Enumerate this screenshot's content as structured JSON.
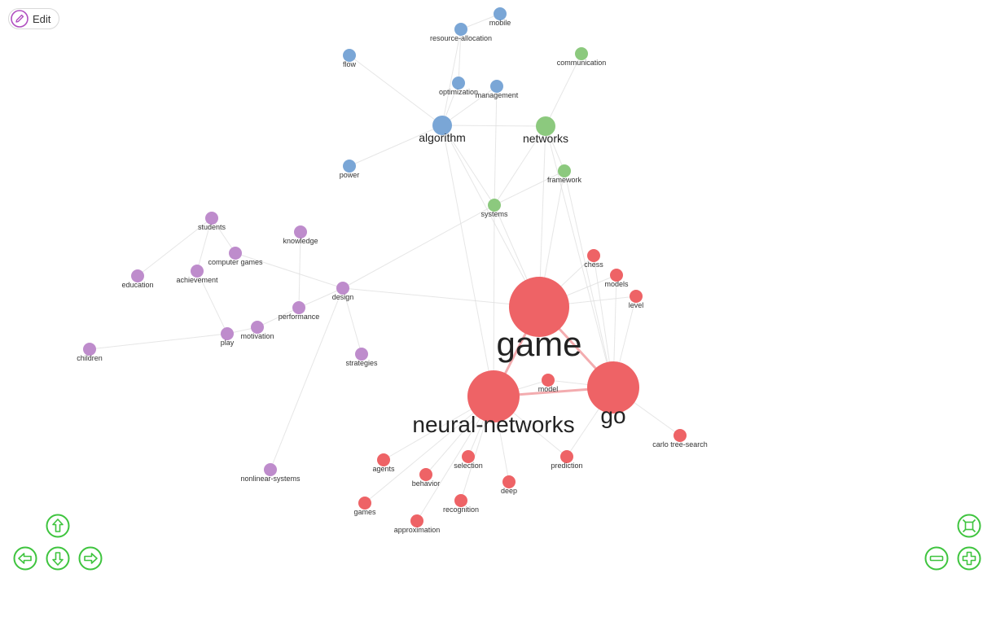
{
  "toolbar": {
    "edit_label": "Edit"
  },
  "colors": {
    "blue": "#7aa6d6",
    "green": "#8cc97e",
    "purple": "#be8ccc",
    "red": "#ee6366",
    "nav": "#3ec43e",
    "edge": "#dcdcdc",
    "edge_strong": "#f2a3a6"
  },
  "graph": {
    "nodes": [
      {
        "id": "mobile",
        "label": "mobile",
        "group": "blue",
        "size": "small"
      },
      {
        "id": "resource-allocation",
        "label": "resource-allocation",
        "group": "blue",
        "size": "small"
      },
      {
        "id": "flow",
        "label": "flow",
        "group": "blue",
        "size": "small"
      },
      {
        "id": "optimization",
        "label": "optimization",
        "group": "blue",
        "size": "small"
      },
      {
        "id": "management",
        "label": "management",
        "group": "blue",
        "size": "small"
      },
      {
        "id": "algorithm",
        "label": "algorithm",
        "group": "blue",
        "size": "medium"
      },
      {
        "id": "power",
        "label": "power",
        "group": "blue",
        "size": "small"
      },
      {
        "id": "communication",
        "label": "communication",
        "group": "green",
        "size": "small"
      },
      {
        "id": "networks",
        "label": "networks",
        "group": "green",
        "size": "medium"
      },
      {
        "id": "framework",
        "label": "framework",
        "group": "green",
        "size": "small"
      },
      {
        "id": "systems",
        "label": "systems",
        "group": "green",
        "size": "small"
      },
      {
        "id": "students",
        "label": "students",
        "group": "purple",
        "size": "small"
      },
      {
        "id": "knowledge",
        "label": "knowledge",
        "group": "purple",
        "size": "small"
      },
      {
        "id": "computer-games",
        "label": "computer games",
        "group": "purple",
        "size": "small"
      },
      {
        "id": "education",
        "label": "education",
        "group": "purple",
        "size": "small"
      },
      {
        "id": "achievement",
        "label": "achievement",
        "group": "purple",
        "size": "small"
      },
      {
        "id": "design",
        "label": "design",
        "group": "purple",
        "size": "small"
      },
      {
        "id": "performance",
        "label": "performance",
        "group": "purple",
        "size": "small"
      },
      {
        "id": "motivation",
        "label": "motivation",
        "group": "purple",
        "size": "small"
      },
      {
        "id": "play",
        "label": "play",
        "group": "purple",
        "size": "small"
      },
      {
        "id": "children",
        "label": "children",
        "group": "purple",
        "size": "small"
      },
      {
        "id": "strategies",
        "label": "strategies",
        "group": "purple",
        "size": "small"
      },
      {
        "id": "nonlinear-systems",
        "label": "nonlinear-systems",
        "group": "purple",
        "size": "small"
      },
      {
        "id": "game",
        "label": "game",
        "group": "red",
        "size": "huge"
      },
      {
        "id": "go",
        "label": "go",
        "group": "red",
        "size": "large"
      },
      {
        "id": "neural-networks",
        "label": "neural-networks",
        "group": "red",
        "size": "large"
      },
      {
        "id": "chess",
        "label": "chess",
        "group": "red",
        "size": "small"
      },
      {
        "id": "models",
        "label": "models",
        "group": "red",
        "size": "small"
      },
      {
        "id": "level",
        "label": "level",
        "group": "red",
        "size": "small"
      },
      {
        "id": "model",
        "label": "model",
        "group": "red",
        "size": "small"
      },
      {
        "id": "carlo-tree-search",
        "label": "carlo tree-search",
        "group": "red",
        "size": "small"
      },
      {
        "id": "agents",
        "label": "agents",
        "group": "red",
        "size": "small"
      },
      {
        "id": "selection",
        "label": "selection",
        "group": "red",
        "size": "small"
      },
      {
        "id": "behavior",
        "label": "behavior",
        "group": "red",
        "size": "small"
      },
      {
        "id": "prediction",
        "label": "prediction",
        "group": "red",
        "size": "small"
      },
      {
        "id": "deep",
        "label": "deep",
        "group": "red",
        "size": "small"
      },
      {
        "id": "games",
        "label": "games",
        "group": "red",
        "size": "small"
      },
      {
        "id": "recognition",
        "label": "recognition",
        "group": "red",
        "size": "small"
      },
      {
        "id": "approximation",
        "label": "approximation",
        "group": "red",
        "size": "small"
      }
    ],
    "edges": [
      [
        "game",
        "go",
        "strong"
      ],
      [
        "game",
        "neural-networks",
        "strong"
      ],
      [
        "go",
        "neural-networks",
        "strong"
      ],
      [
        "game",
        "chess"
      ],
      [
        "game",
        "models"
      ],
      [
        "game",
        "level"
      ],
      [
        "go",
        "chess"
      ],
      [
        "go",
        "models"
      ],
      [
        "go",
        "level"
      ],
      [
        "go",
        "model"
      ],
      [
        "neural-networks",
        "model"
      ],
      [
        "go",
        "carlo-tree-search"
      ],
      [
        "go",
        "prediction"
      ],
      [
        "neural-networks",
        "agents"
      ],
      [
        "neural-networks",
        "selection"
      ],
      [
        "neural-networks",
        "behavior"
      ],
      [
        "neural-networks",
        "deep"
      ],
      [
        "neural-networks",
        "games"
      ],
      [
        "neural-networks",
        "recognition"
      ],
      [
        "neural-networks",
        "approximation"
      ],
      [
        "neural-networks",
        "prediction"
      ],
      [
        "game",
        "systems"
      ],
      [
        "game",
        "algorithm"
      ],
      [
        "game",
        "networks"
      ],
      [
        "game",
        "framework"
      ],
      [
        "game",
        "design"
      ],
      [
        "go",
        "networks"
      ],
      [
        "go",
        "framework"
      ],
      [
        "neural-networks",
        "algorithm"
      ],
      [
        "neural-networks",
        "systems"
      ],
      [
        "algorithm",
        "flow"
      ],
      [
        "algorithm",
        "power"
      ],
      [
        "algorithm",
        "optimization"
      ],
      [
        "algorithm",
        "management"
      ],
      [
        "algorithm",
        "resource-allocation"
      ],
      [
        "algorithm",
        "networks"
      ],
      [
        "algorithm",
        "systems"
      ],
      [
        "resource-allocation",
        "mobile"
      ],
      [
        "optimization",
        "resource-allocation"
      ],
      [
        "management",
        "systems"
      ],
      [
        "networks",
        "communication"
      ],
      [
        "networks",
        "framework"
      ],
      [
        "networks",
        "systems"
      ],
      [
        "framework",
        "systems"
      ],
      [
        "design",
        "systems"
      ],
      [
        "design",
        "performance"
      ],
      [
        "design",
        "strategies"
      ],
      [
        "design",
        "nonlinear-systems"
      ],
      [
        "design",
        "computer-games"
      ],
      [
        "students",
        "education"
      ],
      [
        "students",
        "computer-games"
      ],
      [
        "students",
        "achievement"
      ],
      [
        "knowledge",
        "performance"
      ],
      [
        "performance",
        "motivation"
      ],
      [
        "motivation",
        "play"
      ],
      [
        "play",
        "children"
      ],
      [
        "play",
        "achievement"
      ]
    ]
  }
}
